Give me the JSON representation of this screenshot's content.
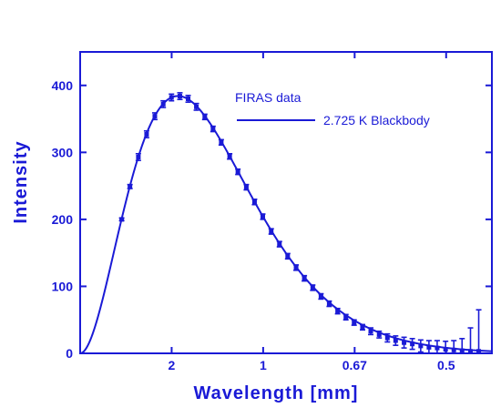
{
  "chart_data": {
    "type": "line",
    "x_axis_quantity": "frequency (cm^-1)",
    "xlim": [
      0,
      22.5
    ],
    "ylim": [
      0,
      450
    ],
    "xlabel": "Wavelength [mm]",
    "ylabel": "Intensity",
    "x_tick_labels": [
      {
        "x": 5,
        "label": "2"
      },
      {
        "x": 10,
        "label": "1"
      },
      {
        "x": 15,
        "label": "0.67"
      },
      {
        "x": 20,
        "label": "0.5"
      }
    ],
    "y_ticks": [
      0,
      100,
      200,
      300,
      400
    ],
    "legend": {
      "position": "top-right",
      "entries": [
        "FIRAS data",
        "2.725 K Blackbody"
      ]
    },
    "series": [
      {
        "name": "FIRAS data",
        "style": "points with error bars",
        "x": [
          2.27,
          2.72,
          3.18,
          3.63,
          4.08,
          4.54,
          4.99,
          5.45,
          5.9,
          6.35,
          6.81,
          7.26,
          7.71,
          8.17,
          8.62,
          9.08,
          9.53,
          9.98,
          10.44,
          10.89,
          11.34,
          11.8,
          12.25,
          12.71,
          13.16,
          13.61,
          14.07,
          14.52,
          14.97,
          15.43,
          15.88,
          16.34,
          16.79,
          17.24,
          17.7,
          18.15,
          18.61,
          19.06,
          19.51,
          19.97,
          20.42,
          20.87,
          21.33,
          21.78
        ],
        "y": [
          200,
          249,
          293,
          327,
          354,
          372,
          382,
          384,
          380,
          368,
          353,
          335,
          315,
          294,
          271,
          248,
          226,
          204,
          182,
          163,
          145,
          128,
          112,
          98,
          85,
          74,
          63,
          54,
          46,
          39,
          33,
          28,
          23,
          19,
          16,
          14,
          11,
          9,
          8,
          6,
          5,
          4,
          3,
          3
        ],
        "error": [
          2,
          3,
          5,
          5,
          5,
          5,
          5,
          5,
          5,
          5,
          4,
          4,
          4,
          4,
          4,
          4,
          4,
          4,
          4,
          4,
          4,
          4,
          4,
          4,
          4,
          4,
          4,
          4,
          4,
          4,
          5,
          5,
          6,
          7,
          8,
          8,
          9,
          10,
          11,
          12,
          14,
          18,
          35,
          62
        ]
      },
      {
        "name": "2.725 K Blackbody",
        "style": "solid line",
        "model": "planck",
        "temperature_K": 2.725
      }
    ],
    "colors": {
      "primary": "#1a1ad6"
    }
  }
}
